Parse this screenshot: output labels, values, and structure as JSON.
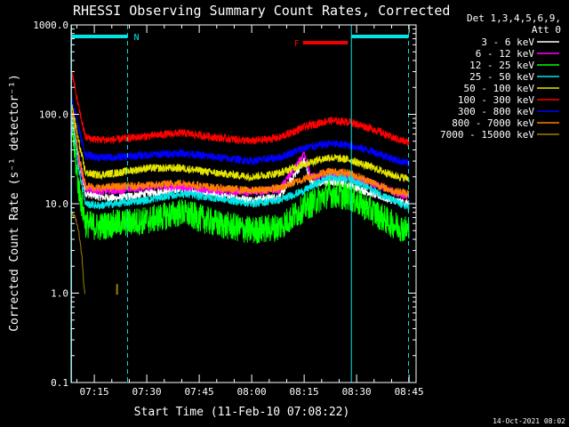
{
  "chart_data": {
    "type": "line",
    "title": "RHESSI Observing Summary Count Rates, Corrected",
    "xlabel": "Start Time (11-Feb-10 07:08:22)",
    "ylabel": "Corrected Count Rate (s⁻¹ detector⁻¹)",
    "ylim": [
      0.1,
      1000
    ],
    "yscale": "log",
    "yticks": [
      0.1,
      1,
      10,
      100,
      1000
    ],
    "ytick_labels": [
      "0.1",
      "1.0",
      "10.0",
      "100.0",
      "1000.0"
    ],
    "xlim": [
      "07:08:22",
      "08:47:00"
    ],
    "xticks": [
      "07:15",
      "07:30",
      "07:45",
      "08:00",
      "08:15",
      "08:30",
      "08:45"
    ],
    "grid": false,
    "legend_position": "right",
    "header": {
      "line1": "Det 1,3,4,5,6,9,",
      "line2": "Att 0"
    },
    "timestamp": "14-Oct-2021 08:02",
    "flags": [
      {
        "label": "N",
        "color": "#00e5e5",
        "segments": [
          [
            "07:08:30",
            "07:24:30"
          ],
          [
            "08:28:30",
            "08:44:50"
          ]
        ]
      },
      {
        "label": "F",
        "color": "#ee0000",
        "segments": [
          [
            "08:14:40",
            "08:27:30"
          ]
        ]
      }
    ],
    "vlines": [
      {
        "time": "07:08:30",
        "style": "solid",
        "color": "#00e5e5"
      },
      {
        "time": "07:24:30",
        "style": "dashed",
        "color": "#00e5e5"
      },
      {
        "time": "08:28:30",
        "style": "solid",
        "color": "#00e5e5"
      },
      {
        "time": "08:44:50",
        "style": "dashed",
        "color": "#00e5e5"
      }
    ],
    "series": [
      {
        "name": "3 - 6 keV",
        "color": "#ffffff",
        "points": [
          [
            "07:08:30",
            85
          ],
          [
            "07:10:30",
            30
          ],
          [
            "07:12:30",
            13
          ],
          [
            "07:16",
            12
          ],
          [
            "07:21",
            11.5
          ],
          [
            "07:30",
            13
          ],
          [
            "07:40",
            14.5
          ],
          [
            "07:50",
            12.5
          ],
          [
            "08:00",
            11
          ],
          [
            "08:08",
            12
          ],
          [
            "08:15",
            30
          ],
          [
            "08:17",
            17
          ],
          [
            "08:25",
            17.5
          ],
          [
            "08:32",
            14
          ],
          [
            "08:40",
            11
          ],
          [
            "08:45",
            10
          ]
        ]
      },
      {
        "name": "6 - 12 keV",
        "color": "#ff00ff",
        "points": [
          [
            "07:08:30",
            100
          ],
          [
            "07:10:30",
            30
          ],
          [
            "07:12:30",
            15
          ],
          [
            "07:16",
            14
          ],
          [
            "07:21",
            14
          ],
          [
            "07:30",
            15.5
          ],
          [
            "07:40",
            15.5
          ],
          [
            "07:50",
            14
          ],
          [
            "08:00",
            13.5
          ],
          [
            "08:08",
            14.5
          ],
          [
            "08:15",
            35
          ],
          [
            "08:17",
            20
          ],
          [
            "08:25",
            21
          ],
          [
            "08:32",
            18
          ],
          [
            "08:40",
            14
          ],
          [
            "08:45",
            12
          ]
        ]
      },
      {
        "name": "12 - 25 keV",
        "color": "#00ff00",
        "points": [
          [
            "07:08:30",
            80
          ],
          [
            "07:10:30",
            15
          ],
          [
            "07:12:30",
            6
          ],
          [
            "07:16",
            5.5
          ],
          [
            "07:21",
            6
          ],
          [
            "07:30",
            6.5
          ],
          [
            "07:40",
            8
          ],
          [
            "07:50",
            6
          ],
          [
            "08:00",
            5
          ],
          [
            "08:08",
            5.5
          ],
          [
            "08:15",
            9
          ],
          [
            "08:22",
            13
          ],
          [
            "08:28",
            12
          ],
          [
            "08:35",
            8
          ],
          [
            "08:40",
            6
          ],
          [
            "08:45",
            5
          ]
        ]
      },
      {
        "name": "25 - 50 keV",
        "color": "#00e5e5",
        "points": [
          [
            "07:08:30",
            110
          ],
          [
            "07:10:30",
            25
          ],
          [
            "07:12:30",
            10
          ],
          [
            "07:16",
            9.5
          ],
          [
            "07:21",
            10
          ],
          [
            "07:30",
            11
          ],
          [
            "07:40",
            13
          ],
          [
            "07:50",
            11.5
          ],
          [
            "08:00",
            10
          ],
          [
            "08:08",
            11
          ],
          [
            "08:15",
            14
          ],
          [
            "08:22",
            20
          ],
          [
            "08:28",
            19
          ],
          [
            "08:35",
            14
          ],
          [
            "08:40",
            11
          ],
          [
            "08:45",
            9
          ]
        ]
      },
      {
        "name": "50 - 100 keV",
        "color": "#e5e500",
        "points": [
          [
            "07:08:30",
            130
          ],
          [
            "07:10:30",
            50
          ],
          [
            "07:12:30",
            22
          ],
          [
            "07:16",
            21
          ],
          [
            "07:21",
            22
          ],
          [
            "07:30",
            25
          ],
          [
            "07:40",
            25
          ],
          [
            "07:50",
            22
          ],
          [
            "08:00",
            20
          ],
          [
            "08:08",
            22
          ],
          [
            "08:15",
            28
          ],
          [
            "08:22",
            33
          ],
          [
            "08:28",
            31
          ],
          [
            "08:35",
            25
          ],
          [
            "08:40",
            21
          ],
          [
            "08:45",
            19
          ]
        ]
      },
      {
        "name": "100 - 300 keV",
        "color": "#ff0000",
        "points": [
          [
            "07:08:30",
            310
          ],
          [
            "07:10:30",
            120
          ],
          [
            "07:12:30",
            55
          ],
          [
            "07:16",
            52
          ],
          [
            "07:21",
            52
          ],
          [
            "07:30",
            57
          ],
          [
            "07:40",
            62
          ],
          [
            "07:50",
            55
          ],
          [
            "08:00",
            50
          ],
          [
            "08:08",
            55
          ],
          [
            "08:15",
            72
          ],
          [
            "08:22",
            85
          ],
          [
            "08:28",
            82
          ],
          [
            "08:35",
            68
          ],
          [
            "08:40",
            55
          ],
          [
            "08:45",
            48
          ]
        ]
      },
      {
        "name": "300 - 800 keV",
        "color": "#0000ff",
        "points": [
          [
            "07:08:30",
            165
          ],
          [
            "07:10:30",
            70
          ],
          [
            "07:12:30",
            35
          ],
          [
            "07:16",
            33
          ],
          [
            "07:21",
            33
          ],
          [
            "07:30",
            35
          ],
          [
            "07:40",
            37
          ],
          [
            "07:50",
            33
          ],
          [
            "08:00",
            30
          ],
          [
            "08:08",
            33
          ],
          [
            "08:15",
            42
          ],
          [
            "08:22",
            47
          ],
          [
            "08:28",
            45
          ],
          [
            "08:35",
            38
          ],
          [
            "08:40",
            32
          ],
          [
            "08:45",
            28
          ]
        ]
      },
      {
        "name": "800 - 7000 keV",
        "color": "#ff7f00",
        "points": [
          [
            "07:08:30",
            120
          ],
          [
            "07:10:30",
            35
          ],
          [
            "07:12:30",
            16
          ],
          [
            "07:16",
            15
          ],
          [
            "07:21",
            15.5
          ],
          [
            "07:30",
            16
          ],
          [
            "07:40",
            17
          ],
          [
            "07:50",
            15
          ],
          [
            "08:00",
            14
          ],
          [
            "08:08",
            15
          ],
          [
            "08:15",
            19
          ],
          [
            "08:22",
            23
          ],
          [
            "08:28",
            22
          ],
          [
            "08:35",
            17
          ],
          [
            "08:40",
            14
          ],
          [
            "08:45",
            13
          ]
        ]
      },
      {
        "name": "7000 - 15000 keV",
        "color": "#a08000",
        "points": [
          [
            "07:08:30",
            8
          ],
          [
            "07:09:30",
            7
          ],
          [
            "07:10:30",
            5
          ],
          [
            "07:11:30",
            2.5
          ],
          [
            "07:12",
            1.2
          ],
          [
            "07:12:20",
            1.0
          ]
        ],
        "extra_points": [
          [
            "07:21:30",
            1.1
          ]
        ]
      }
    ]
  }
}
